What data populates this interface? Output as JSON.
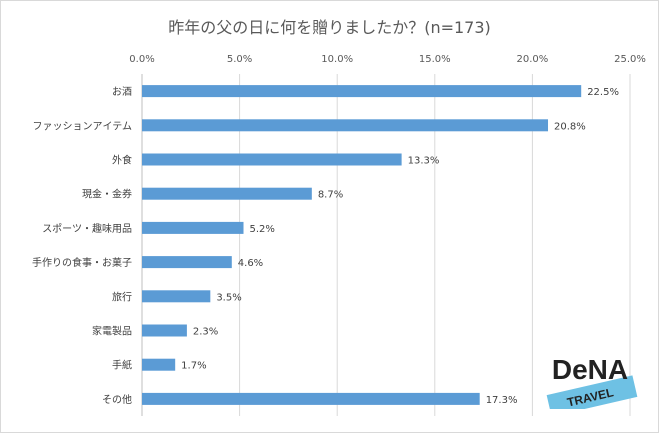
{
  "chart_data": {
    "type": "bar",
    "orientation": "horizontal",
    "title": "昨年の父の日に何を贈りましたか？(n=173)",
    "categories": [
      "お酒",
      "ファッションアイテム",
      "外食",
      "現金・金券",
      "スポーツ・趣味用品",
      "手作りの食事・お菓子",
      "旅行",
      "家電製品",
      "手紙",
      "その他"
    ],
    "values": [
      22.5,
      20.8,
      13.3,
      8.7,
      5.2,
      4.6,
      3.5,
      2.3,
      1.7,
      17.3
    ],
    "value_labels": [
      "22.5%",
      "20.8%",
      "13.3%",
      "8.7%",
      "5.2%",
      "4.6%",
      "3.5%",
      "2.3%",
      "1.7%",
      "17.3%"
    ],
    "xlim": [
      0,
      25
    ],
    "x_ticks": [
      "0.0%",
      "5.0%",
      "10.0%",
      "15.0%",
      "20.0%",
      "25.0%"
    ],
    "x_axis_position": "top",
    "grid": true,
    "bar_color": "#5b9bd5",
    "grid_color": "#d9d9d9"
  },
  "logo": {
    "brand": "DeNA",
    "sub": "TRAVEL",
    "brand_color": "#222222",
    "band_color": "#6ec1e4"
  }
}
